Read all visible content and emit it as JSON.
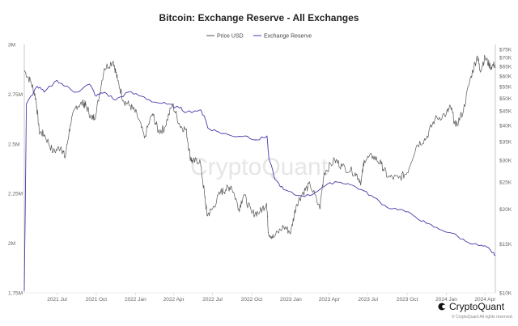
{
  "chart_data": {
    "type": "line",
    "title": "Bitcoin: Exchange Reserve - All Exchanges",
    "legend_position": "top-center",
    "grid": false,
    "x_ticks": [
      "2021 Jul",
      "2021 Oct",
      "2022 Jan",
      "2022 Apr",
      "2022 Jul",
      "2022 Oct",
      "2023 Jan",
      "2023 Apr",
      "2023 Jul",
      "2023 Oct",
      "2024 Jan",
      "2024 Apr"
    ],
    "xlim": [
      "2021-04-15",
      "2024-04-25"
    ],
    "left_axis": {
      "ticks": [
        "1.75M",
        "2M",
        "2.25M",
        "2.5M",
        "2.75M",
        "3M"
      ],
      "ylim": [
        1750000,
        3000000
      ]
    },
    "right_axis": {
      "scale": "log",
      "ticks": [
        "$10K",
        "$15K",
        "$20K",
        "$25K",
        "$30K",
        "$35K",
        "$40K",
        "$45K",
        "$50K",
        "$55K",
        "$60K",
        "$65K",
        "$70K",
        "$75K"
      ],
      "ylim": [
        10000,
        78000
      ]
    },
    "series": [
      {
        "name": "Price USD",
        "axis": "right",
        "color": "#555555",
        "x": [
          "2021-04-15",
          "2021-05-01",
          "2021-05-12",
          "2021-05-20",
          "2021-06-01",
          "2021-06-22",
          "2021-07-10",
          "2021-07-20",
          "2021-08-01",
          "2021-08-15",
          "2021-09-01",
          "2021-09-07",
          "2021-09-21",
          "2021-10-01",
          "2021-10-20",
          "2021-11-10",
          "2021-11-20",
          "2021-12-04",
          "2021-12-20",
          "2022-01-05",
          "2022-01-22",
          "2022-02-10",
          "2022-02-24",
          "2022-03-10",
          "2022-03-29",
          "2022-04-15",
          "2022-04-30",
          "2022-05-09",
          "2022-05-15",
          "2022-06-01",
          "2022-06-13",
          "2022-06-18",
          "2022-07-01",
          "2022-07-20",
          "2022-08-01",
          "2022-08-14",
          "2022-09-01",
          "2022-09-12",
          "2022-10-01",
          "2022-10-20",
          "2022-11-05",
          "2022-11-09",
          "2022-11-21",
          "2022-12-15",
          "2023-01-01",
          "2023-01-14",
          "2023-01-30",
          "2023-02-15",
          "2023-03-10",
          "2023-03-20",
          "2023-04-14",
          "2023-05-01",
          "2023-06-01",
          "2023-06-15",
          "2023-06-22",
          "2023-07-13",
          "2023-08-01",
          "2023-08-17",
          "2023-09-11",
          "2023-10-01",
          "2023-10-24",
          "2023-11-15",
          "2023-12-05",
          "2024-01-01",
          "2024-01-11",
          "2024-01-23",
          "2024-02-10",
          "2024-02-28",
          "2024-03-14",
          "2024-03-20",
          "2024-04-01",
          "2024-04-13",
          "2024-04-25"
        ],
        "y": [
          63000,
          57000,
          50000,
          38000,
          37000,
          32000,
          33500,
          30500,
          40000,
          47000,
          48000,
          47000,
          42000,
          44000,
          64000,
          68000,
          58000,
          49000,
          47000,
          43500,
          36000,
          44000,
          38000,
          39000,
          47500,
          40000,
          38500,
          31000,
          29500,
          30000,
          22000,
          19000,
          20000,
          23000,
          23500,
          24200,
          20000,
          22500,
          19300,
          19500,
          21000,
          16500,
          15800,
          17300,
          16500,
          20800,
          23000,
          24500,
          20000,
          27000,
          30000,
          28500,
          27000,
          25000,
          30000,
          31000,
          29000,
          26000,
          25800,
          27000,
          34000,
          36000,
          42000,
          44000,
          46500,
          39500,
          45000,
          60000,
          71000,
          63000,
          70000,
          65000,
          66000
        ]
      },
      {
        "name": "Exchange Reserve",
        "axis": "left",
        "color": "#4a3aa8",
        "x": [
          "2021-04-15",
          "2021-04-20",
          "2021-05-15",
          "2021-06-01",
          "2021-07-01",
          "2021-07-20",
          "2021-08-15",
          "2021-09-15",
          "2021-10-01",
          "2021-10-20",
          "2021-11-15",
          "2021-12-15",
          "2022-01-15",
          "2022-02-15",
          "2022-03-15",
          "2022-04-15",
          "2022-05-01",
          "2022-06-01",
          "2022-06-12",
          "2022-06-20",
          "2022-07-15",
          "2022-08-15",
          "2022-09-15",
          "2022-10-15",
          "2022-11-06",
          "2022-11-10",
          "2022-11-25",
          "2022-12-15",
          "2023-01-15",
          "2023-02-15",
          "2023-03-15",
          "2023-04-15",
          "2023-05-15",
          "2023-06-15",
          "2023-07-15",
          "2023-08-15",
          "2023-09-15",
          "2023-10-15",
          "2023-11-15",
          "2023-12-15",
          "2024-01-15",
          "2024-02-15",
          "2024-03-15",
          "2024-04-05",
          "2024-04-15",
          "2024-04-25"
        ],
        "y": [
          1760000,
          2700000,
          2790000,
          2760000,
          2820000,
          2790000,
          2760000,
          2800000,
          2740000,
          2760000,
          2720000,
          2760000,
          2740000,
          2710000,
          2700000,
          2680000,
          2660000,
          2670000,
          2640000,
          2580000,
          2560000,
          2540000,
          2540000,
          2520000,
          2540000,
          2430000,
          2320000,
          2270000,
          2240000,
          2240000,
          2280000,
          2310000,
          2300000,
          2270000,
          2230000,
          2180000,
          2170000,
          2140000,
          2100000,
          2070000,
          2050000,
          2010000,
          1990000,
          1980000,
          1960000,
          1940000
        ]
      }
    ]
  },
  "watermark": "CryptoQuant",
  "brand": {
    "name": "CryptoQuant",
    "copyright": "© CryptoQuant All rights reserved."
  }
}
